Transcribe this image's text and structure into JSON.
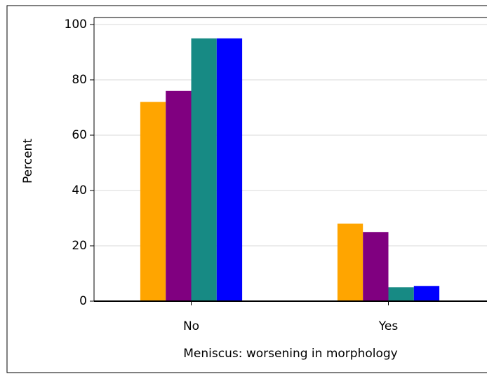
{
  "chart_data": {
    "type": "bar",
    "x_label": "Meniscus: worsening in morphology",
    "y_label": "Percent",
    "categories": [
      "No",
      "Yes"
    ],
    "series": [
      {
        "color": "#ffa500",
        "values": [
          72,
          28
        ]
      },
      {
        "color": "#800080",
        "values": [
          76,
          25
        ]
      },
      {
        "color": "#178a84",
        "values": [
          95,
          5
        ]
      },
      {
        "color": "#0000ff",
        "values": [
          95,
          5.5
        ]
      }
    ],
    "ylim": [
      0,
      100
    ],
    "yticks": [
      0,
      20,
      40,
      60,
      80,
      100
    ],
    "grid": true
  }
}
